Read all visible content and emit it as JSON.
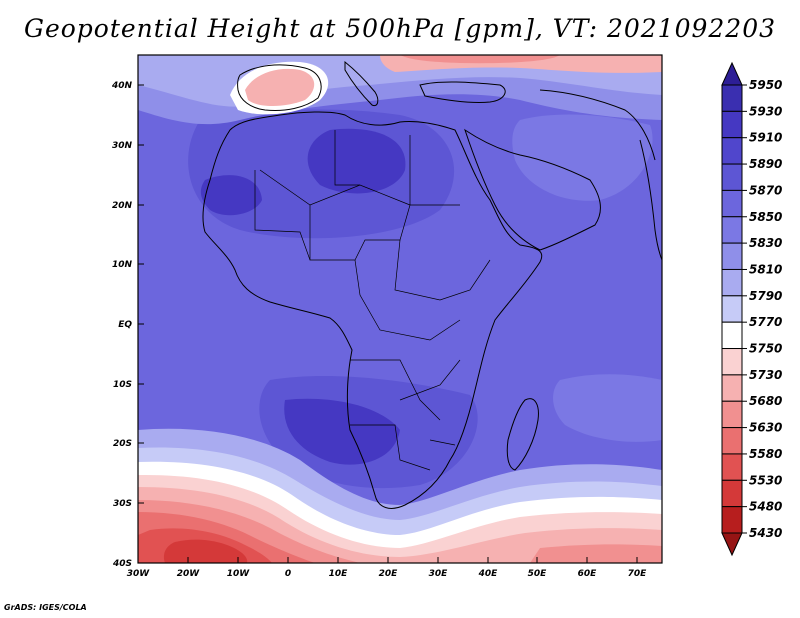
{
  "title": "Geopotential Height at 500hPa [gpm], VT: 2021092203",
  "credit": "GrADS: IGES/COLA",
  "map": {
    "lat_labels": [
      "40N",
      "30N",
      "20N",
      "10N",
      "EQ",
      "10S",
      "20S",
      "30S",
      "40S"
    ],
    "lon_labels": [
      "30W",
      "20W",
      "10W",
      "0",
      "10E",
      "20E",
      "30E",
      "40E",
      "50E",
      "60E",
      "70E"
    ],
    "lat_range": [
      -40,
      44
    ],
    "lon_range": [
      -30,
      75
    ]
  },
  "colorbar": {
    "levels": [
      5950,
      5930,
      5910,
      5890,
      5870,
      5850,
      5830,
      5810,
      5790,
      5770,
      5750,
      5730,
      5680,
      5630,
      5580,
      5530,
      5480,
      5430
    ],
    "colors": [
      "#2d1e96",
      "#3a2fb0",
      "#4538c2",
      "#5046cc",
      "#5d56d4",
      "#6c66dd",
      "#7b78e4",
      "#8f8fe9",
      "#a9abf0",
      "#c6cbf7",
      "#ffffff",
      "#fad2d2",
      "#f6b1b1",
      "#f19090",
      "#ea7070",
      "#e15252",
      "#d43939",
      "#b71e1e",
      "#961414"
    ]
  },
  "field_colors": {
    "pacific": "#6c66dd",
    "deep": "#4538c2",
    "mid": "#5d56d4",
    "light": "#7b78e4",
    "pale": "#a9abf0",
    "white": "#ffffff",
    "pink": "#f6b1b1",
    "red": "#e15252",
    "darkred": "#b71e1e"
  }
}
